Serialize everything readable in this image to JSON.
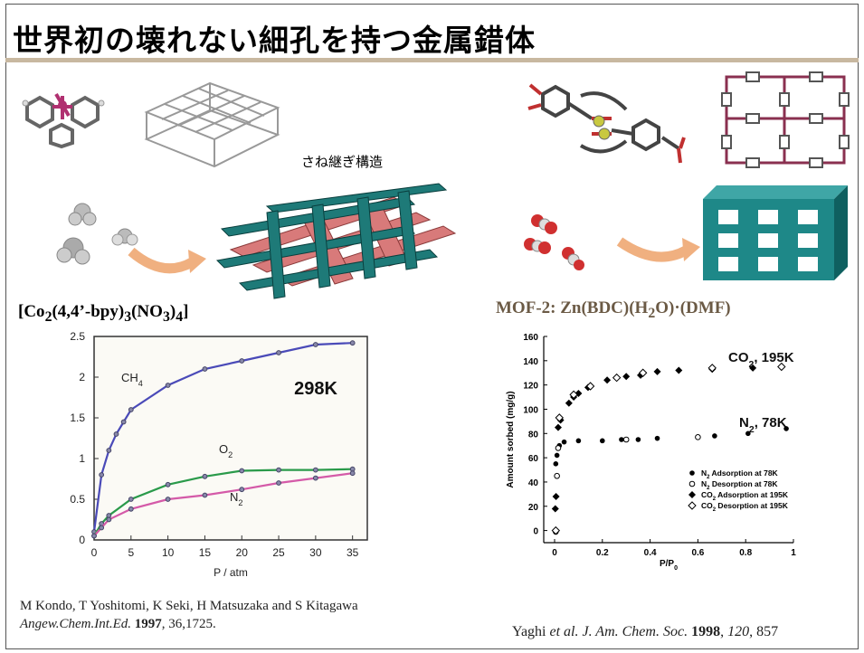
{
  "slide": {
    "title": "世界初の壊れない細孔を持つ金属錯体",
    "interlock_label": "さね継ぎ構造",
    "left_formula": {
      "prefix": "[Co",
      "s1": "2",
      "mid1": "(4,4’-bpy)",
      "s2": "3",
      "mid2": "(NO",
      "s3": "3",
      "mid3": ")",
      "s4": "4",
      "suffix": "]"
    },
    "right_formula": {
      "prefix": "MOF-2: Zn(BDC)(H",
      "s1": "2",
      "suffix": "O)·(DMF)"
    },
    "left_citation": {
      "authors": "M Kondo, T Yoshitomi, K Seki, H Matsuzaka and S Kitagawa",
      "journal": "Angew.Chem.Int.Ed.",
      "year": "1997",
      "rest": ", 36,1725."
    },
    "right_citation": {
      "author": "Yaghi ",
      "etal": "et al. J. Am. Chem. Soc.",
      "year": " 1998",
      "comma": ", ",
      "volume": "120",
      "pages": ", 857"
    }
  },
  "chart_data": [
    {
      "type": "line",
      "xlabel": "P / atm",
      "ylabel": "",
      "xlim": [
        0,
        37
      ],
      "ylim": [
        0,
        2.5
      ],
      "xticks": [
        "0",
        "5",
        "10",
        "15",
        "20",
        "25",
        "30",
        "35"
      ],
      "yticks": [
        "0",
        "0.5",
        "1",
        "1.5",
        "2",
        "2.5"
      ],
      "annotation": "298K",
      "series": [
        {
          "name": "CH",
          "sub": "4",
          "color": "#4a4ab8",
          "x": [
            0,
            1,
            2,
            3,
            4,
            5,
            10,
            15,
            20,
            25,
            30,
            35
          ],
          "y": [
            0.1,
            0.8,
            1.1,
            1.3,
            1.45,
            1.6,
            1.9,
            2.1,
            2.2,
            2.3,
            2.4,
            2.42
          ]
        },
        {
          "name": "O",
          "sub": "2",
          "color": "#2a9a4a",
          "x": [
            0,
            1,
            2,
            5,
            10,
            15,
            20,
            25,
            30,
            35
          ],
          "y": [
            0.05,
            0.2,
            0.3,
            0.5,
            0.68,
            0.78,
            0.85,
            0.86,
            0.86,
            0.87
          ]
        },
        {
          "name": "N",
          "sub": "2",
          "color": "#d45aa8",
          "x": [
            0,
            1,
            2,
            5,
            10,
            15,
            20,
            25,
            30,
            35
          ],
          "y": [
            0.05,
            0.15,
            0.25,
            0.38,
            0.5,
            0.55,
            0.62,
            0.7,
            0.76,
            0.82
          ]
        }
      ]
    },
    {
      "type": "scatter",
      "xlabel": "P/P",
      "xlabel_sub": "0",
      "ylabel": "Amount sorbed (mg/g)",
      "xlim": [
        0,
        1
      ],
      "ylim": [
        -10,
        160
      ],
      "xticks": [
        "0",
        "0.2",
        "0.4",
        "0.6",
        "0.8",
        "1"
      ],
      "yticks": [
        "0",
        "20",
        "40",
        "60",
        "80",
        "100",
        "120",
        "140",
        "160"
      ],
      "annotations": [
        {
          "text": "CO",
          "sub": "2",
          "rest": ", 195K"
        },
        {
          "text": "N",
          "sub": "2",
          "rest": ", 78K"
        }
      ],
      "legend_position": "bottom-right",
      "series": [
        {
          "name_pre": "N",
          "name_sub": "2",
          "name_post": " Adsorption at 78K",
          "marker": "filled-circle",
          "x": [
            0.005,
            0.01,
            0.02,
            0.04,
            0.1,
            0.2,
            0.28,
            0.35,
            0.43,
            0.67,
            0.81,
            0.97
          ],
          "y": [
            55,
            62,
            70,
            73,
            74,
            74,
            75,
            75,
            76,
            78,
            80,
            84
          ]
        },
        {
          "name_pre": "N",
          "name_sub": "2",
          "name_post": " Desorption at 78K",
          "marker": "open-circle",
          "x": [
            0.005,
            0.01,
            0.015,
            0.3,
            0.6
          ],
          "y": [
            -1,
            45,
            68,
            75,
            77
          ]
        },
        {
          "name_pre": "CO",
          "name_sub": "2",
          "name_post": " Adsorption at 195K",
          "marker": "filled-diamond",
          "x": [
            0.003,
            0.006,
            0.015,
            0.025,
            0.06,
            0.08,
            0.1,
            0.14,
            0.22,
            0.3,
            0.36,
            0.43,
            0.52,
            0.66,
            0.83
          ],
          "y": [
            18,
            28,
            85,
            91,
            105,
            110,
            113,
            118,
            124,
            127,
            128,
            131,
            132,
            133,
            134
          ]
        },
        {
          "name_pre": "CO",
          "name_sub": "2",
          "name_post": " Desorption at 195K",
          "marker": "open-diamond",
          "x": [
            0.005,
            0.02,
            0.08,
            0.15,
            0.26,
            0.37,
            0.66,
            0.95
          ],
          "y": [
            0,
            93,
            112,
            119,
            126,
            130,
            134,
            135
          ]
        }
      ]
    }
  ]
}
